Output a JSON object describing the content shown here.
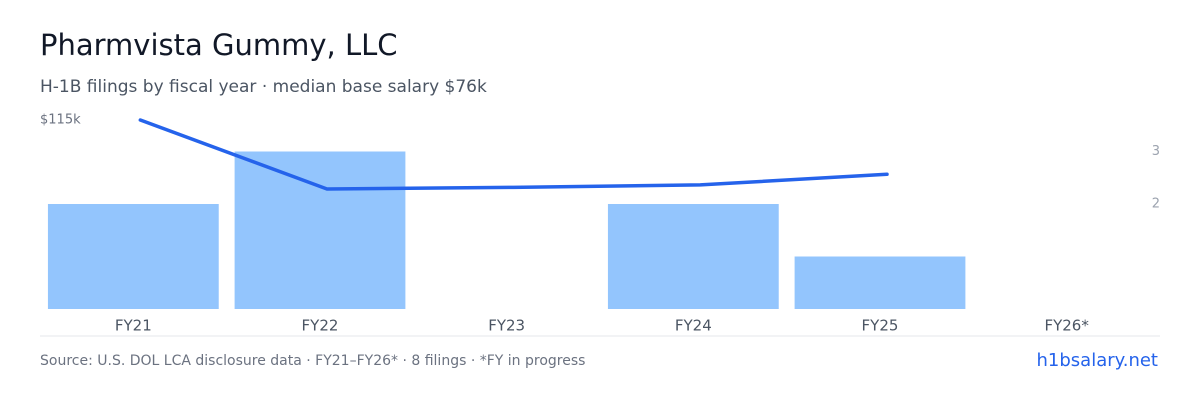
{
  "chart_data": {
    "type": "bar-line",
    "title": "Pharmvista Gummy, LLC",
    "subtitle": "H-1B filings by fiscal year · median base salary $76k",
    "source": "Source: U.S. DOL LCA disclosure data · FY21–FY26* · 8 filings · *FY in progress",
    "brand": "h1bsalary.net",
    "categories": [
      "FY21",
      "FY22",
      "FY23",
      "FY24",
      "FY25",
      "FY26*"
    ],
    "series": [
      {
        "type": "bar",
        "axis": "y2",
        "color": "#93c5fd",
        "values": [
          2,
          3,
          0,
          2,
          1,
          0
        ]
      },
      {
        "type": "line",
        "color": "#2563eb",
        "values": [
          115,
          73,
          74,
          75.5,
          82,
          null
        ]
      }
    ],
    "ylim": [
      0,
      115
    ],
    "yticks": [
      {
        "value": 115,
        "label": "$115k"
      }
    ],
    "y2lim": [
      0,
      3.6
    ],
    "y2ticks": [
      2,
      3
    ]
  }
}
